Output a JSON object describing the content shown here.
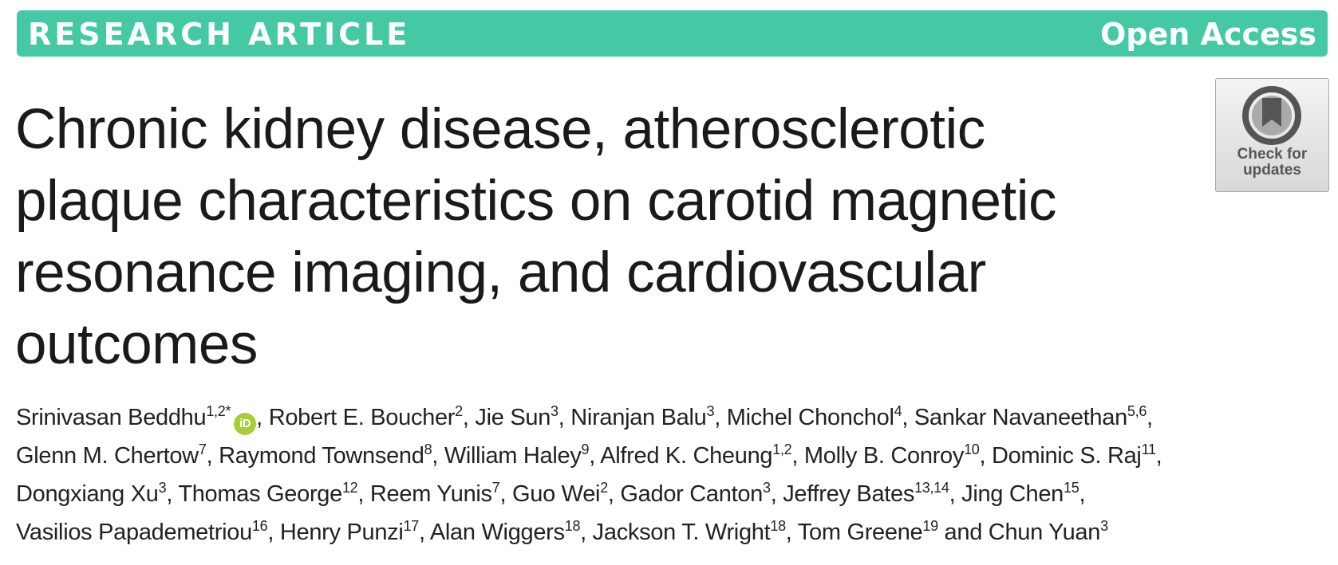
{
  "header": {
    "label": "RESEARCH ARTICLE",
    "access": "Open Access"
  },
  "badge": {
    "line1": "Check for",
    "line2": "updates"
  },
  "title_lines": [
    "Chronic kidney disease, atherosclerotic",
    "plaque characteristics on carotid magnetic",
    "resonance imaging, and cardiovascular",
    "outcomes"
  ],
  "author_lines": [
    [
      {
        "name": "Srinivasan Beddhu",
        "sup": "1,2*",
        "orcid": "iD",
        "sep": ", "
      },
      {
        "name": "Robert E. Boucher",
        "sup": "2",
        "sep": ", "
      },
      {
        "name": "Jie Sun",
        "sup": "3",
        "sep": ", "
      },
      {
        "name": "Niranjan Balu",
        "sup": "3",
        "sep": ", "
      },
      {
        "name": "Michel Chonchol",
        "sup": "4",
        "sep": ", "
      },
      {
        "name": "Sankar Navaneethan",
        "sup": "5,6",
        "sep": ","
      }
    ],
    [
      {
        "name": "Glenn M. Chertow",
        "sup": "7",
        "sep": ", "
      },
      {
        "name": "Raymond Townsend",
        "sup": "8",
        "sep": ", "
      },
      {
        "name": "William Haley",
        "sup": "9",
        "sep": ", "
      },
      {
        "name": "Alfred K. Cheung",
        "sup": "1,2",
        "sep": ", "
      },
      {
        "name": "Molly B. Conroy",
        "sup": "10",
        "sep": ", "
      },
      {
        "name": "Dominic S. Raj",
        "sup": "11",
        "sep": ","
      }
    ],
    [
      {
        "name": "Dongxiang Xu",
        "sup": "3",
        "sep": ", "
      },
      {
        "name": "Thomas George",
        "sup": "12",
        "sep": ", "
      },
      {
        "name": "Reem Yunis",
        "sup": "7",
        "sep": ", "
      },
      {
        "name": "Guo Wei",
        "sup": "2",
        "sep": ", "
      },
      {
        "name": "Gador Canton",
        "sup": "3",
        "sep": ", "
      },
      {
        "name": "Jeffrey Bates",
        "sup": "13,14",
        "sep": ", "
      },
      {
        "name": "Jing Chen",
        "sup": "15",
        "sep": ","
      }
    ],
    [
      {
        "name": "Vasilios Papademetriou",
        "sup": "16",
        "sep": ", "
      },
      {
        "name": "Henry Punzi",
        "sup": "17",
        "sep": ", "
      },
      {
        "name": "Alan Wiggers",
        "sup": "18",
        "sep": ", "
      },
      {
        "name": "Jackson T. Wright",
        "sup": "18",
        "sep": ", "
      },
      {
        "name": "Tom Greene",
        "sup": "19",
        "sep": " and "
      },
      {
        "name": "Chun Yuan",
        "sup": "3"
      }
    ]
  ]
}
